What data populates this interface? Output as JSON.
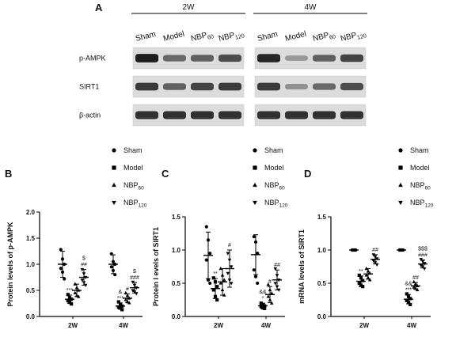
{
  "panel_a": {
    "letter": "A",
    "groups": [
      {
        "label": "2W",
        "lanes": [
          {
            "main": "Sham",
            "sub": ""
          },
          {
            "main": "Model",
            "sub": ""
          },
          {
            "main": "NBP",
            "sub": "60"
          },
          {
            "main": "NBP",
            "sub": "120"
          }
        ]
      },
      {
        "label": "4W",
        "lanes": [
          {
            "main": "Sham",
            "sub": ""
          },
          {
            "main": "Model",
            "sub": ""
          },
          {
            "main": "NBP",
            "sub": "60"
          },
          {
            "main": "NBP",
            "sub": "120"
          }
        ]
      }
    ],
    "rows": [
      {
        "label": "p-AMPK",
        "intensity": [
          [
            0.95,
            0.55,
            0.6,
            0.7
          ],
          [
            0.9,
            0.3,
            0.6,
            0.75
          ]
        ]
      },
      {
        "label": "SIRT1",
        "intensity": [
          [
            0.8,
            0.6,
            0.75,
            0.8
          ],
          [
            0.8,
            0.35,
            0.55,
            0.7
          ]
        ]
      },
      {
        "label": "β-actin",
        "intensity": [
          [
            0.85,
            0.85,
            0.85,
            0.85
          ],
          [
            0.85,
            0.85,
            0.85,
            0.85
          ]
        ]
      }
    ]
  },
  "legend_entries": [
    {
      "main": "Sham",
      "sub": ""
    },
    {
      "main": "Model",
      "sub": ""
    },
    {
      "main": "NBP",
      "sub": "60"
    },
    {
      "main": "NBP",
      "sub": "120"
    }
  ],
  "chart_data": [
    {
      "type": "scatter",
      "panel": "B",
      "ylabel": "Protein levels of p-AMPK",
      "categories": [
        "2W",
        "4W"
      ],
      "ylim": [
        0,
        2.0
      ],
      "yticks": [
        "0.0",
        "0.5",
        "1.0",
        "1.5",
        "2.0"
      ],
      "grid": false,
      "legend": "top-right",
      "series": [
        {
          "name": "Sham",
          "marker": "circle",
          "mean": [
            1.0,
            1.0
          ],
          "sd": [
            0.25,
            0.18
          ],
          "points": [
            [
              1.28,
              1.1,
              1.0,
              0.92,
              0.85,
              0.72
            ],
            [
              1.2,
              1.05,
              1.0,
              0.95,
              0.88,
              0.8
            ]
          ],
          "annotations": [
            [],
            []
          ]
        },
        {
          "name": "Model",
          "marker": "square",
          "mean": [
            0.33,
            0.2
          ],
          "sd": [
            0.08,
            0.06
          ],
          "points": [
            [
              0.42,
              0.36,
              0.33,
              0.3,
              0.27,
              0.24
            ],
            [
              0.28,
              0.23,
              0.2,
              0.18,
              0.16,
              0.13
            ]
          ],
          "annotations": [
            [
              "***"
            ],
            [
              "&",
              "***"
            ]
          ]
        },
        {
          "name": "NBP60",
          "marker": "triangle-up",
          "mean": [
            0.5,
            0.35
          ],
          "sd": [
            0.12,
            0.08
          ],
          "points": [
            [
              0.62,
              0.55,
              0.5,
              0.45,
              0.4,
              0.38
            ],
            [
              0.45,
              0.4,
              0.35,
              0.32,
              0.28,
              0.26
            ]
          ],
          "annotations": [
            [],
            [
              "#"
            ]
          ]
        },
        {
          "name": "NBP120",
          "marker": "triangle-down",
          "mean": [
            0.75,
            0.55
          ],
          "sd": [
            0.15,
            0.1
          ],
          "points": [
            [
              0.9,
              0.82,
              0.75,
              0.7,
              0.65,
              0.6
            ],
            [
              0.66,
              0.6,
              0.55,
              0.5,
              0.47,
              0.44
            ]
          ],
          "annotations": [
            [
              "$",
              "##"
            ],
            [
              "$",
              "###"
            ]
          ]
        }
      ]
    },
    {
      "type": "scatter",
      "panel": "C",
      "ylabel": "Protein l evels of SIRT1",
      "categories": [
        "2W",
        "4W"
      ],
      "ylim": [
        0,
        1.5
      ],
      "yticks": [
        "0.0",
        "0.5",
        "1.0",
        "1.5"
      ],
      "grid": false,
      "legend": "top-right",
      "series": [
        {
          "name": "Sham",
          "marker": "circle",
          "mean": [
            0.92,
            0.93
          ],
          "sd": [
            0.35,
            0.3
          ],
          "points": [
            [
              1.35,
              1.15,
              0.95,
              0.85,
              0.55,
              0.5
            ],
            [
              1.2,
              1.12,
              0.95,
              0.7,
              0.6,
              0.5
            ]
          ],
          "annotations": [
            [],
            []
          ]
        },
        {
          "name": "Model",
          "marker": "square",
          "mean": [
            0.42,
            0.16
          ],
          "sd": [
            0.15,
            0.04
          ],
          "points": [
            [
              0.58,
              0.52,
              0.45,
              0.4,
              0.3,
              0.25
            ],
            [
              0.2,
              0.18,
              0.16,
              0.15,
              0.13,
              0.12
            ]
          ],
          "annotations": [
            [
              "**"
            ],
            [
              "&&",
              "*"
            ]
          ]
        },
        {
          "name": "NBP60",
          "marker": "triangle-up",
          "mean": [
            0.52,
            0.33
          ],
          "sd": [
            0.2,
            0.12
          ],
          "points": [
            [
              0.72,
              0.62,
              0.55,
              0.5,
              0.4,
              0.32
            ],
            [
              0.48,
              0.4,
              0.35,
              0.3,
              0.25,
              0.2
            ]
          ],
          "annotations": [
            [],
            [
              "#"
            ]
          ]
        },
        {
          "name": "NBP120",
          "marker": "triangle-down",
          "mean": [
            0.72,
            0.55
          ],
          "sd": [
            0.28,
            0.15
          ],
          "points": [
            [
              0.95,
              0.85,
              0.75,
              0.65,
              0.55,
              0.5
            ],
            [
              0.72,
              0.62,
              0.55,
              0.5,
              0.45,
              0.4
            ]
          ],
          "annotations": [
            [
              "#"
            ],
            [
              "##"
            ]
          ]
        }
      ]
    },
    {
      "type": "scatter",
      "panel": "D",
      "ylabel": "mRNA levels of SIRT1",
      "categories": [
        "2W",
        "4W"
      ],
      "ylim": [
        0,
        1.5
      ],
      "yticks": [
        "0.0",
        "0.5",
        "1.0",
        "1.5"
      ],
      "grid": false,
      "legend": "top-right",
      "series": [
        {
          "name": "Sham",
          "marker": "circle",
          "mean": [
            1.0,
            1.0
          ],
          "sd": [
            0.01,
            0.01
          ],
          "points": [
            [
              1.0,
              1.0,
              1.0,
              1.0,
              1.0,
              1.0
            ],
            [
              1.0,
              1.0,
              1.0,
              1.0,
              1.0,
              1.0
            ]
          ],
          "annotations": [
            [],
            []
          ]
        },
        {
          "name": "Model",
          "marker": "square",
          "mean": [
            0.53,
            0.26
          ],
          "sd": [
            0.08,
            0.07
          ],
          "points": [
            [
              0.62,
              0.58,
              0.54,
              0.5,
              0.47,
              0.45
            ],
            [
              0.34,
              0.3,
              0.27,
              0.24,
              0.21,
              0.18
            ]
          ],
          "annotations": [
            [
              "**"
            ],
            [
              "&&",
              "***"
            ]
          ]
        },
        {
          "name": "NBP60",
          "marker": "triangle-up",
          "mean": [
            0.64,
            0.46
          ],
          "sd": [
            0.08,
            0.05
          ],
          "points": [
            [
              0.72,
              0.68,
              0.65,
              0.62,
              0.58,
              0.55
            ],
            [
              0.52,
              0.49,
              0.46,
              0.44,
              0.42,
              0.4
            ]
          ],
          "annotations": [
            [],
            [
              "##"
            ]
          ]
        },
        {
          "name": "NBP120",
          "marker": "triangle-down",
          "mean": [
            0.86,
            0.79
          ],
          "sd": [
            0.07,
            0.06
          ],
          "points": [
            [
              0.93,
              0.9,
              0.87,
              0.84,
              0.81,
              0.78
            ],
            [
              0.86,
              0.83,
              0.8,
              0.77,
              0.75,
              0.72
            ]
          ],
          "annotations": [
            [
              "##"
            ],
            [
              "$$$",
              "###"
            ]
          ]
        }
      ]
    }
  ]
}
